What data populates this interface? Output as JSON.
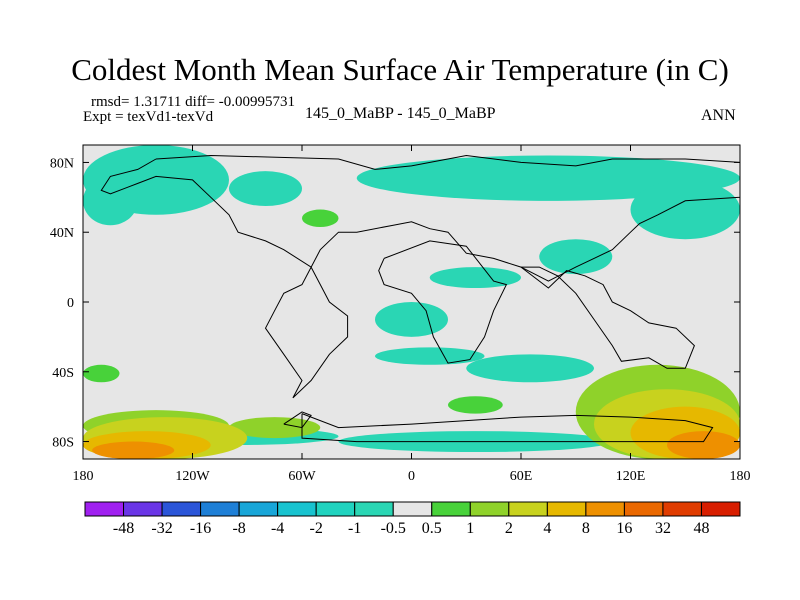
{
  "chart_data": {
    "type": "heatmap",
    "title": "Coldest Month Mean Surface Air Temperature (in C)",
    "stats_line": "rmsd= 1.31711  diff= -0.00995731",
    "experiment": "Expt = texVd1-texVd",
    "comparison": "145_0_MaBP - 145_0_MaBP",
    "season": "ANN",
    "xlim": [
      -180,
      180
    ],
    "ylim": [
      -90,
      90
    ],
    "x_ticks": [
      {
        "value": -180,
        "label": "180"
      },
      {
        "value": -120,
        "label": "120W"
      },
      {
        "value": -60,
        "label": "60W"
      },
      {
        "value": 0,
        "label": "0"
      },
      {
        "value": 60,
        "label": "60E"
      },
      {
        "value": 120,
        "label": "120E"
      },
      {
        "value": 180,
        "label": "180"
      }
    ],
    "y_ticks": [
      {
        "value": 80,
        "label": "80N"
      },
      {
        "value": 40,
        "label": "40N"
      },
      {
        "value": 0,
        "label": "0"
      },
      {
        "value": -40,
        "label": "40S"
      },
      {
        "value": -80,
        "label": "80S"
      }
    ],
    "colorbar": {
      "boundaries": [
        "-48",
        "-32",
        "-16",
        "-8",
        "-4",
        "-2",
        "-1",
        "-0.5",
        "0.5",
        "1",
        "2",
        "4",
        "8",
        "16",
        "32",
        "48"
      ],
      "colors": [
        "#a020f0",
        "#6a35e6",
        "#2b55d8",
        "#1e7fd6",
        "#18a6d8",
        "#18c3cf",
        "#20d3bf",
        "#2ad6b4",
        "#e6e6e6",
        "#48d23a",
        "#8fd22a",
        "#c8d21e",
        "#e6b800",
        "#ee9000",
        "#ea6800",
        "#e03c00",
        "#d81e00"
      ]
    },
    "regions": [
      {
        "level": "-0.5",
        "lon": [
          -180,
          -100
        ],
        "lat": [
          50,
          90
        ],
        "shape": "ellipse"
      },
      {
        "level": "-0.5",
        "lon": [
          -180,
          -150
        ],
        "lat": [
          44,
          72
        ],
        "shape": "ellipse"
      },
      {
        "level": "-0.5",
        "lon": [
          -100,
          -60
        ],
        "lat": [
          55,
          75
        ],
        "shape": "ellipse"
      },
      {
        "level": "-0.5",
        "lon": [
          -30,
          180
        ],
        "lat": [
          58,
          84
        ],
        "shape": "ellipse"
      },
      {
        "level": "-0.5",
        "lon": [
          120,
          180
        ],
        "lat": [
          36,
          70
        ],
        "shape": "ellipse"
      },
      {
        "level": "-0.5",
        "lon": [
          -20,
          20
        ],
        "lat": [
          -20,
          0
        ],
        "shape": "ellipse"
      },
      {
        "level": "-0.5",
        "lon": [
          70,
          110
        ],
        "lat": [
          16,
          36
        ],
        "shape": "ellipse"
      },
      {
        "level": "-0.5",
        "lon": [
          -20,
          40
        ],
        "lat": [
          -36,
          -26
        ],
        "shape": "ellipse"
      },
      {
        "level": "-0.5",
        "lon": [
          30,
          100
        ],
        "lat": [
          -46,
          -30
        ],
        "shape": "ellipse"
      },
      {
        "level": "-0.5",
        "lon": [
          -40,
          110
        ],
        "lat": [
          -86,
          -74
        ],
        "shape": "ellipse"
      },
      {
        "level": "-0.5",
        "lon": [
          -150,
          -40
        ],
        "lat": [
          -82,
          -72
        ],
        "shape": "ellipse"
      },
      {
        "level": "-0.5",
        "lon": [
          10,
          60
        ],
        "lat": [
          8,
          20
        ],
        "shape": "ellipse"
      },
      {
        "level": "1",
        "lon": [
          -60,
          -40
        ],
        "lat": [
          43,
          53
        ],
        "shape": "ellipse"
      },
      {
        "level": "1",
        "lon": [
          -180,
          -160
        ],
        "lat": [
          -46,
          -36
        ],
        "shape": "ellipse"
      },
      {
        "level": "1",
        "lon": [
          20,
          50
        ],
        "lat": [
          -64,
          -54
        ],
        "shape": "ellipse"
      },
      {
        "level": "2",
        "lon": [
          -180,
          -100
        ],
        "lat": [
          -80,
          -62
        ],
        "shape": "ellipse"
      },
      {
        "level": "2",
        "lon": [
          -100,
          -50
        ],
        "lat": [
          -78,
          -66
        ],
        "shape": "ellipse"
      },
      {
        "level": "2",
        "lon": [
          90,
          180
        ],
        "lat": [
          -90,
          -36
        ],
        "shape": "ellipse"
      },
      {
        "level": "4",
        "lon": [
          -180,
          -90
        ],
        "lat": [
          -90,
          -66
        ],
        "shape": "ellipse"
      },
      {
        "level": "4",
        "lon": [
          100,
          180
        ],
        "lat": [
          -90,
          -50
        ],
        "shape": "ellipse"
      },
      {
        "level": "8",
        "lon": [
          -180,
          -110
        ],
        "lat": [
          -90,
          -74
        ],
        "shape": "ellipse"
      },
      {
        "level": "8",
        "lon": [
          120,
          180
        ],
        "lat": [
          -90,
          -60
        ],
        "shape": "ellipse"
      },
      {
        "level": "16",
        "lon": [
          -175,
          -130
        ],
        "lat": [
          -90,
          -80
        ],
        "shape": "ellipse"
      },
      {
        "level": "16",
        "lon": [
          140,
          180
        ],
        "lat": [
          -90,
          -74
        ],
        "shape": "ellipse"
      }
    ],
    "coastlines": [
      {
        "name": "north-continent",
        "points": [
          [
            -140,
            82
          ],
          [
            -110,
            84
          ],
          [
            -40,
            82
          ],
          [
            -20,
            76
          ],
          [
            0,
            78
          ],
          [
            30,
            84
          ],
          [
            60,
            80
          ],
          [
            90,
            78
          ],
          [
            110,
            82
          ],
          [
            150,
            82
          ],
          [
            180,
            80
          ],
          [
            180,
            60
          ],
          [
            150,
            58
          ],
          [
            135,
            50
          ],
          [
            125,
            45
          ],
          [
            120,
            40
          ],
          [
            110,
            30
          ],
          [
            100,
            25
          ],
          [
            90,
            20
          ],
          [
            75,
            12
          ],
          [
            60,
            20
          ],
          [
            45,
            25
          ],
          [
            30,
            28
          ],
          [
            20,
            40
          ],
          [
            10,
            42
          ],
          [
            0,
            46
          ],
          [
            -10,
            44
          ],
          [
            -30,
            40
          ],
          [
            -40,
            40
          ],
          [
            -50,
            30
          ],
          [
            -60,
            10
          ],
          [
            -70,
            5
          ],
          [
            -75,
            -5
          ],
          [
            -80,
            -15
          ],
          [
            -70,
            -30
          ],
          [
            -60,
            -45
          ],
          [
            -65,
            -55
          ],
          [
            -55,
            -45
          ],
          [
            -45,
            -30
          ],
          [
            -35,
            -20
          ],
          [
            -35,
            -8
          ],
          [
            -45,
            0
          ],
          [
            -50,
            10
          ],
          [
            -55,
            20
          ],
          [
            -70,
            30
          ],
          [
            -80,
            35
          ],
          [
            -95,
            40
          ],
          [
            -100,
            50
          ],
          [
            -110,
            60
          ],
          [
            -120,
            70
          ],
          [
            -140,
            72
          ],
          [
            -150,
            68
          ],
          [
            -165,
            62
          ],
          [
            -170,
            64
          ],
          [
            -165,
            72
          ],
          [
            -150,
            76
          ],
          [
            -140,
            82
          ]
        ]
      },
      {
        "name": "africa",
        "points": [
          [
            -15,
            25
          ],
          [
            10,
            35
          ],
          [
            30,
            32
          ],
          [
            45,
            12
          ],
          [
            52,
            10
          ],
          [
            45,
            -5
          ],
          [
            40,
            -20
          ],
          [
            32,
            -33
          ],
          [
            20,
            -35
          ],
          [
            12,
            -20
          ],
          [
            8,
            -5
          ],
          [
            0,
            5
          ],
          [
            -15,
            10
          ],
          [
            -18,
            18
          ],
          [
            -15,
            25
          ]
        ]
      },
      {
        "name": "india-australia",
        "points": [
          [
            60,
            20
          ],
          [
            75,
            8
          ],
          [
            85,
            18
          ],
          [
            95,
            15
          ],
          [
            105,
            10
          ],
          [
            110,
            0
          ],
          [
            120,
            -5
          ],
          [
            130,
            -12
          ],
          [
            145,
            -15
          ],
          [
            155,
            -25
          ],
          [
            150,
            -38
          ],
          [
            140,
            -38
          ],
          [
            130,
            -32
          ],
          [
            115,
            -34
          ],
          [
            110,
            -25
          ],
          [
            100,
            -10
          ],
          [
            90,
            5
          ],
          [
            80,
            15
          ],
          [
            70,
            20
          ],
          [
            60,
            20
          ]
        ]
      },
      {
        "name": "antarctica",
        "points": [
          [
            -60,
            -64
          ],
          [
            -40,
            -72
          ],
          [
            0,
            -70
          ],
          [
            30,
            -68
          ],
          [
            60,
            -66
          ],
          [
            90,
            -65
          ],
          [
            120,
            -66
          ],
          [
            150,
            -68
          ],
          [
            165,
            -72
          ],
          [
            160,
            -80
          ],
          [
            -30,
            -80
          ],
          [
            -60,
            -78
          ],
          [
            -60,
            -64
          ]
        ]
      },
      {
        "name": "antarctic-peninsula",
        "points": [
          [
            -70,
            -70
          ],
          [
            -60,
            -63
          ],
          [
            -55,
            -65
          ],
          [
            -60,
            -72
          ],
          [
            -70,
            -70
          ]
        ]
      }
    ]
  }
}
